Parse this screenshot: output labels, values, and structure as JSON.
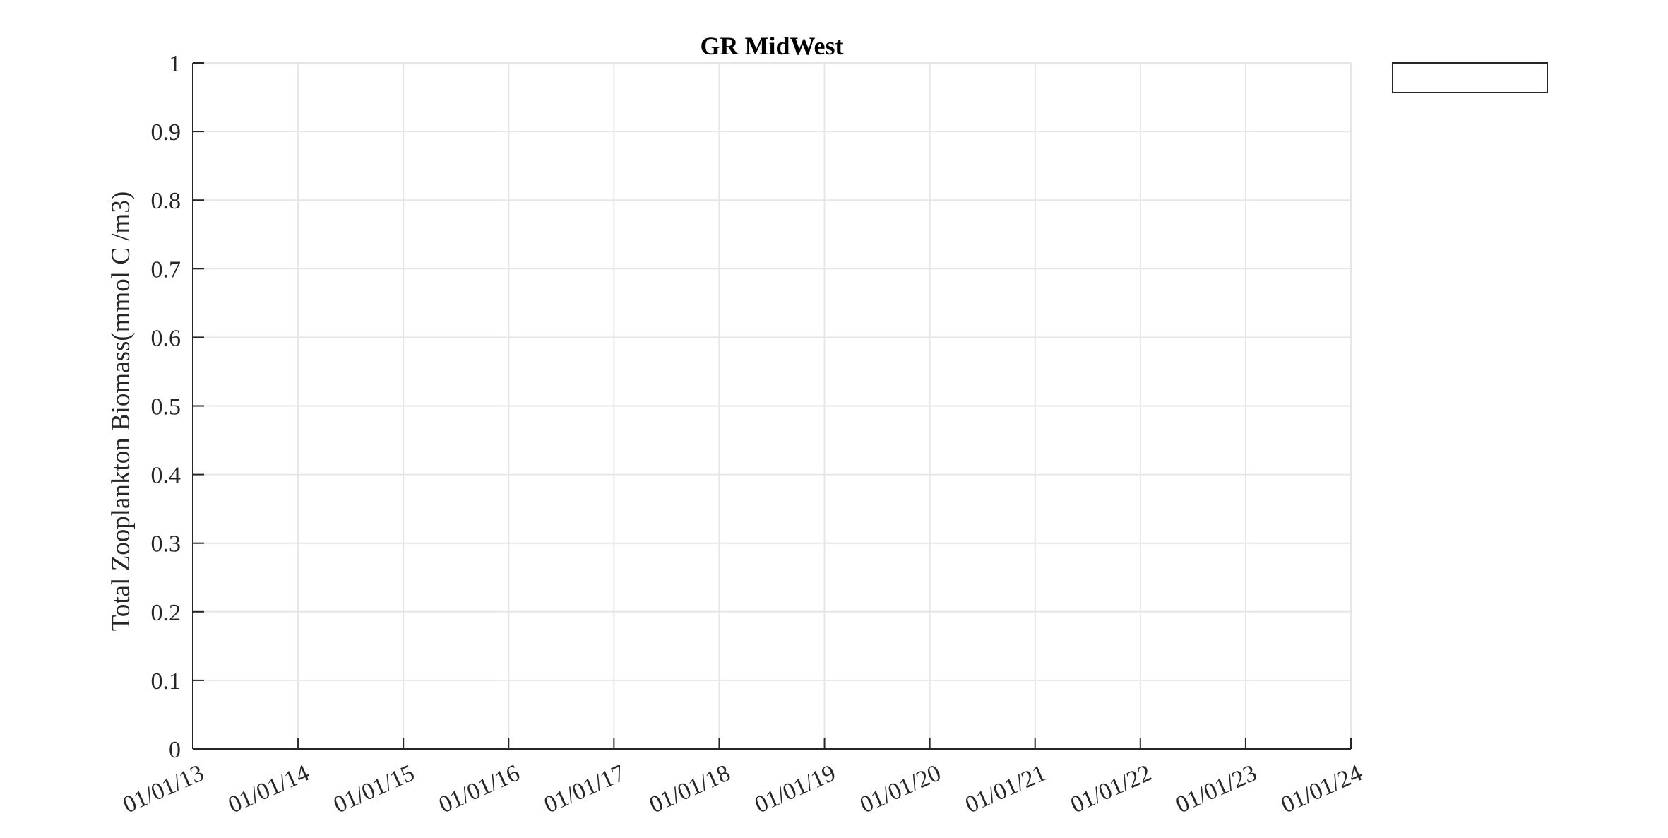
{
  "chart_data": {
    "type": "line",
    "title": "GR MidWest",
    "xlabel": "",
    "ylabel": "Total Zooplankton Biomass(mmol C /m3)",
    "x_ticks": [
      "01/01/13",
      "01/01/14",
      "01/01/15",
      "01/01/16",
      "01/01/17",
      "01/01/18",
      "01/01/19",
      "01/01/20",
      "01/01/21",
      "01/01/22",
      "01/01/23",
      "01/01/24"
    ],
    "xlim": [
      "01/01/13",
      "01/01/24"
    ],
    "y_ticks": [
      "0",
      "0.1",
      "0.2",
      "0.3",
      "0.4",
      "0.5",
      "0.6",
      "0.7",
      "0.8",
      "0.9",
      "1"
    ],
    "ylim": [
      0,
      1
    ],
    "grid": true,
    "legend": "outside-top-right",
    "legend_entries": [],
    "series": [],
    "colors": {
      "grid": "#e6e6e6",
      "axis": "#262626",
      "background": "#ffffff"
    }
  }
}
